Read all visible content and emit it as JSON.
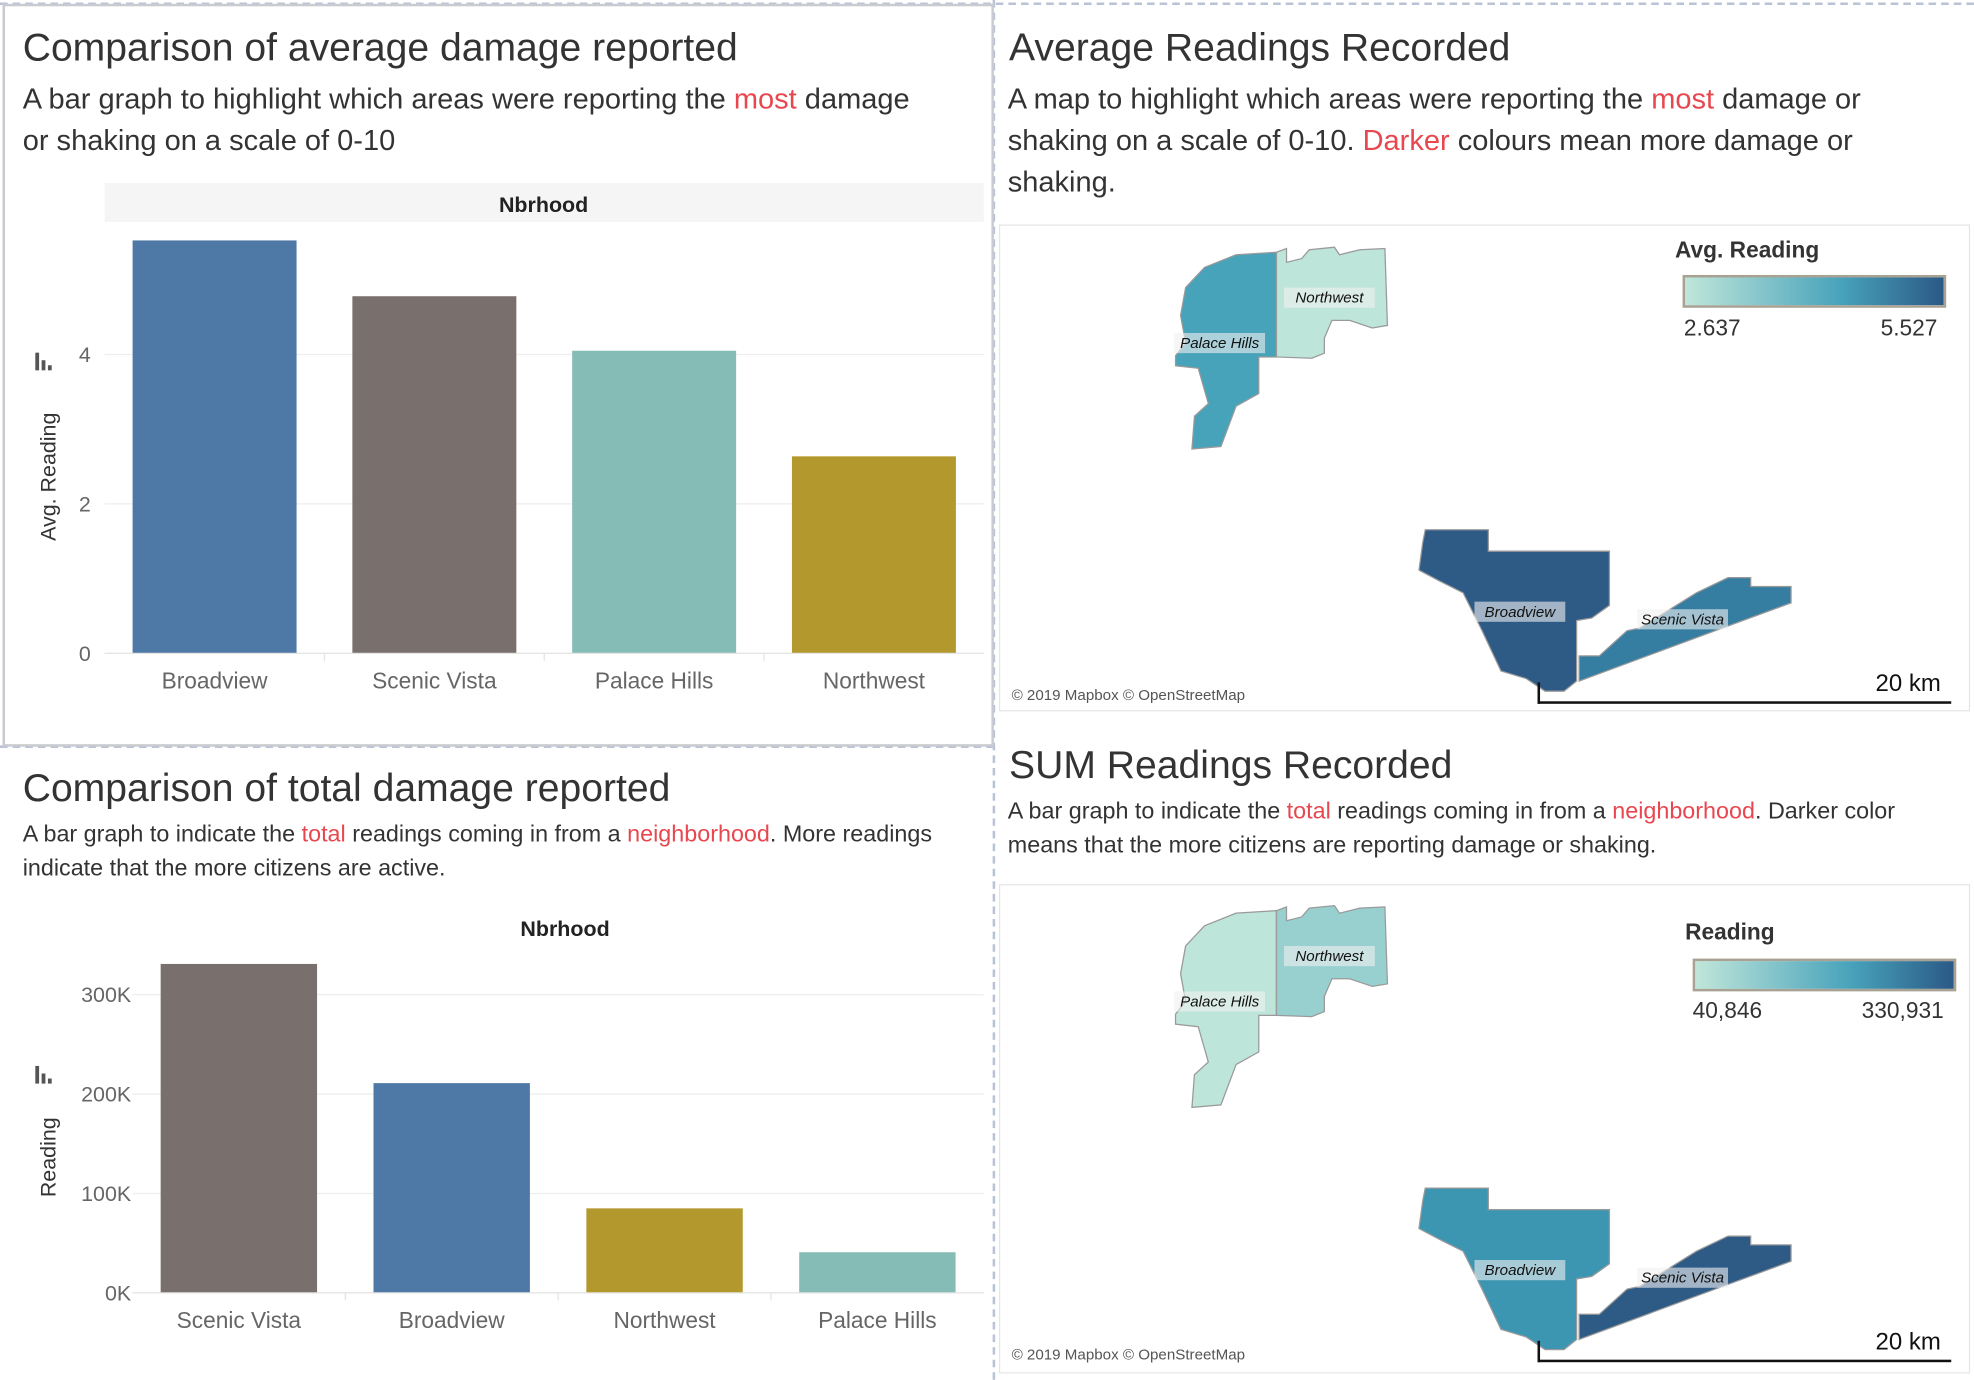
{
  "panels": {
    "avg_bar": {
      "title": "Comparison of average damage reported",
      "subtitle": [
        {
          "text": "A bar graph to highlight which areas were reporting the ",
          "highlight": false
        },
        {
          "text": "most",
          "highlight": true
        },
        {
          "text": " damage or shaking on a scale of 0-10",
          "highlight": false
        }
      ]
    },
    "avg_map": {
      "title": "Average Readings Recorded",
      "subtitle": [
        {
          "text": "A map to highlight which areas were reporting the ",
          "highlight": false
        },
        {
          "text": "most",
          "highlight": true
        },
        {
          "text": " damage or shaking on a scale of 0-10. ",
          "highlight": false
        },
        {
          "text": "Darker",
          "highlight": true
        },
        {
          "text": " colours mean more damage or shaking.",
          "highlight": false
        }
      ],
      "legend": {
        "title": "Avg. Reading",
        "min": "2.637",
        "max": "5.527"
      },
      "regions": [
        {
          "name": "Palace Hills",
          "color": "#46a3b9"
        },
        {
          "name": "Northwest",
          "color": "#bde5da"
        },
        {
          "name": "Broadview",
          "color": "#2e5a86"
        },
        {
          "name": "Scenic Vista",
          "color": "#357ea2"
        }
      ],
      "attribution": "© 2019 Mapbox © OpenStreetMap",
      "scale_label": "20 km"
    },
    "sum_bar": {
      "title": "Comparison of total damage reported",
      "subtitle": [
        {
          "text": "A bar graph to indicate the ",
          "highlight": false
        },
        {
          "text": "total",
          "highlight": true
        },
        {
          "text": " readings coming in from a ",
          "highlight": false
        },
        {
          "text": "neighborhood",
          "highlight": true
        },
        {
          "text": ". More readings indicate that the more citizens are active.",
          "highlight": false
        }
      ]
    },
    "sum_map": {
      "title": "SUM Readings Recorded",
      "subtitle": [
        {
          "text": "A bar graph to indicate the ",
          "highlight": false
        },
        {
          "text": "total",
          "highlight": true
        },
        {
          "text": " readings coming in from a ",
          "highlight": false
        },
        {
          "text": "neighborhood",
          "highlight": true
        },
        {
          "text": ". Darker color means  that the more citizens are reporting damage or shaking.",
          "highlight": false
        }
      ],
      "legend": {
        "title": "Reading",
        "min": "40,846",
        "max": "330,931"
      },
      "regions": [
        {
          "name": "Palace Hills",
          "color": "#bde5da"
        },
        {
          "name": "Northwest",
          "color": "#98d0d0"
        },
        {
          "name": "Broadview",
          "color": "#3c96b2"
        },
        {
          "name": "Scenic Vista",
          "color": "#2e5a86"
        }
      ],
      "attribution": "© 2019 Mapbox © OpenStreetMap",
      "scale_label": "20 km"
    }
  },
  "chart_data": [
    {
      "type": "bar",
      "header": "Nbrhood",
      "ylabel": "Avg. Reading",
      "categories": [
        "Broadview",
        "Scenic Vista",
        "Palace Hills",
        "Northwest"
      ],
      "values": [
        5.527,
        4.78,
        4.05,
        2.637
      ],
      "colors": [
        "#4e79a7",
        "#796f6c",
        "#86bcb6",
        "#b3982e"
      ],
      "yticks": [
        0,
        2,
        4
      ],
      "ytick_labels": [
        "0",
        "2",
        "4"
      ],
      "ylim": [
        0,
        5.74
      ],
      "grid": true
    },
    {
      "type": "bar",
      "header": "Nbrhood",
      "ylabel": "Reading",
      "categories": [
        "Scenic Vista",
        "Broadview",
        "Northwest",
        "Palace Hills"
      ],
      "values": [
        330931,
        211000,
        85000,
        40846
      ],
      "colors": [
        "#796f6c",
        "#4e79a7",
        "#b3982e",
        "#86bcb6"
      ],
      "yticks": [
        0,
        100000,
        200000,
        300000
      ],
      "ytick_labels": [
        "0K",
        "100K",
        "200K",
        "300K"
      ],
      "ylim": [
        0,
        349000
      ],
      "grid": true
    }
  ]
}
